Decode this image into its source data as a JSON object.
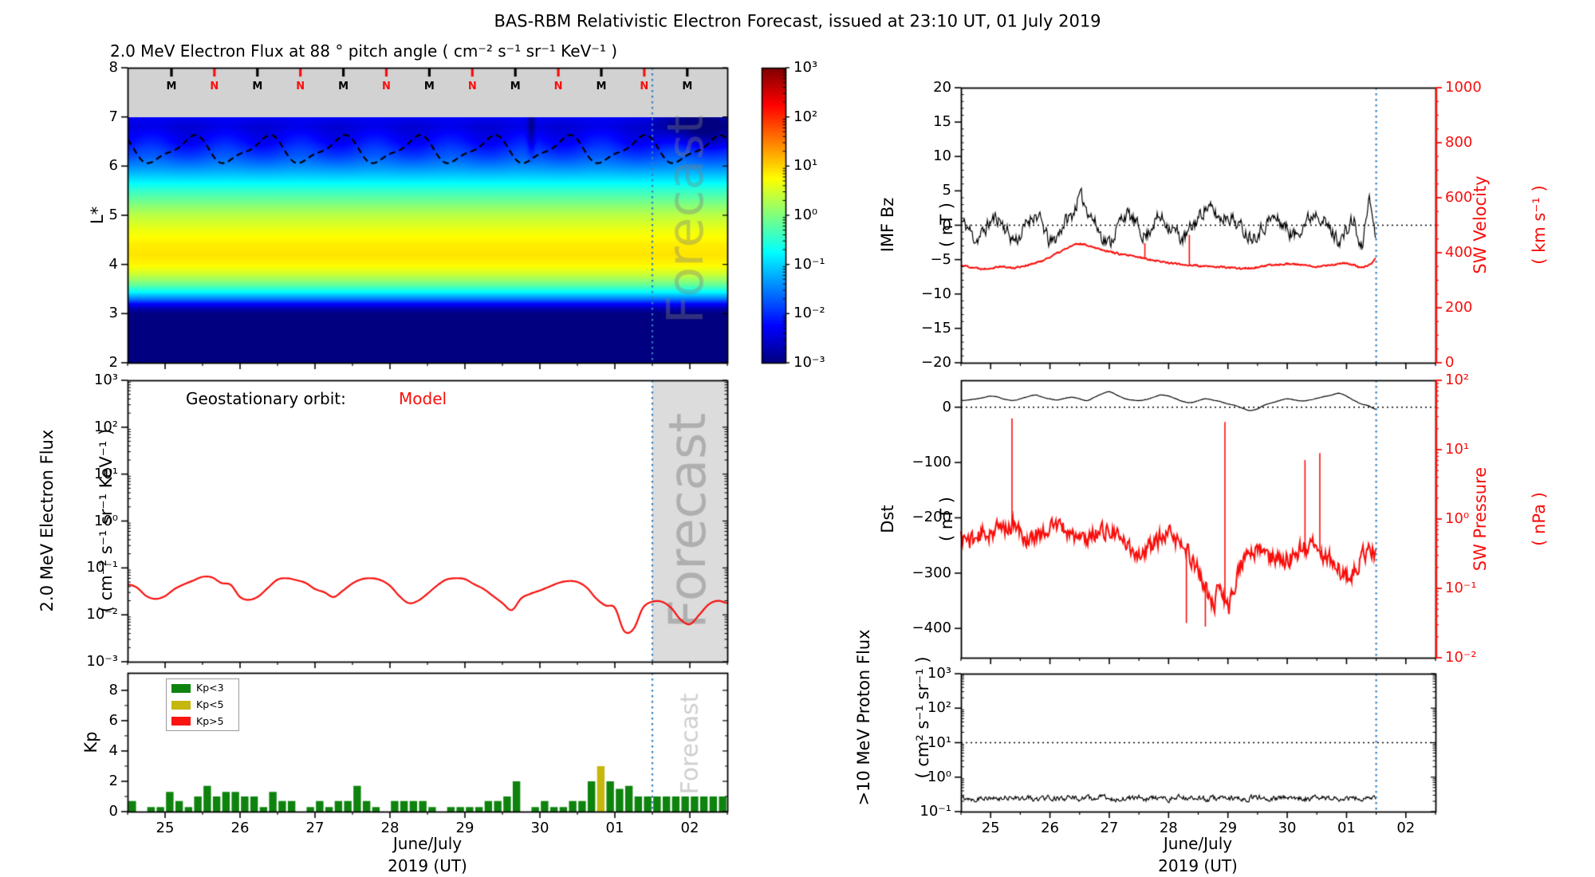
{
  "figure": {
    "title": "BAS-RBM Relativistic Electron Forecast, issued at 23:10 UT, 01 July 2019",
    "watermark": "Forecast"
  },
  "colors": {
    "red": "#f80f0c",
    "black": "#000000",
    "forecast_line": "#3580bf",
    "gray_band": "#d2d2d2",
    "forecast_shade": "#dcdcdc",
    "kp_green": "#0e830e",
    "kp_yellow": "#c5b70d",
    "kp_red": "#fa1510"
  },
  "time_axis": {
    "range": [
      24.5,
      32.5
    ],
    "forecast_start_t": 31.5,
    "ticks": [
      {
        "t": 25,
        "label": "25"
      },
      {
        "t": 26,
        "label": "26"
      },
      {
        "t": 27,
        "label": "27"
      },
      {
        "t": 28,
        "label": "28"
      },
      {
        "t": 29,
        "label": "29"
      },
      {
        "t": 30,
        "label": "30"
      },
      {
        "t": 31,
        "label": "01"
      },
      {
        "t": 32,
        "label": "02"
      }
    ],
    "xlabel_line1": "June/July",
    "xlabel_line2": "2019 (UT)"
  },
  "chart_data": [
    {
      "id": "electron-flux-heatmap",
      "type": "heatmap",
      "title": "2.0 MeV Electron Flux at 88 ° pitch angle ( cm⁻² s⁻¹ sr⁻¹ KeV⁻¹ )",
      "ylabel": "L*",
      "ylim": [
        2,
        8
      ],
      "yticks": [
        {
          "v": 8,
          "label": "8"
        },
        {
          "v": 7,
          "label": "7"
        },
        {
          "v": 6,
          "label": "6"
        },
        {
          "v": 5,
          "label": "5"
        },
        {
          "v": 4,
          "label": "4"
        },
        {
          "v": 3,
          "label": "3"
        },
        {
          "v": 2,
          "label": "2"
        }
      ],
      "colormap": "jet",
      "log10_color_range": [
        -3,
        3
      ],
      "colorbar_ticks": [
        {
          "v": 3,
          "label": "10³"
        },
        {
          "v": 2,
          "label": "10²"
        },
        {
          "v": 1,
          "label": "10¹"
        },
        {
          "v": 0,
          "label": "10⁰"
        },
        {
          "v": -1,
          "label": "10⁻¹"
        },
        {
          "v": -2,
          "label": "10⁻²"
        },
        {
          "v": -3,
          "label": "10⁻³"
        }
      ],
      "top_band": {
        "L_range": [
          7,
          8
        ],
        "first_t": 25.085,
        "step_t": 0.5734,
        "markers": [
          "M",
          "N",
          "M",
          "N",
          "M",
          "N",
          "M",
          "N",
          "M",
          "N",
          "M",
          "N",
          "M"
        ],
        "marker_colors": {
          "M": "black",
          "N": "red"
        }
      },
      "flux_profile": {
        "L": [
          7.0,
          6.8,
          6.5,
          6.2,
          6.0,
          5.8,
          5.5,
          5.2,
          5.0,
          4.7,
          4.4,
          4.2,
          4.0,
          3.8,
          3.6,
          3.45,
          3.3,
          3.2,
          3.1,
          3.0,
          2.0
        ],
        "log10_flux": [
          -2.3,
          -2.45,
          -2.2,
          -1.8,
          -1.45,
          -1.05,
          -0.45,
          0.05,
          0.35,
          0.65,
          0.85,
          0.9,
          0.8,
          0.45,
          -0.1,
          -0.7,
          -1.5,
          -2.2,
          -2.7,
          -3.0,
          -3.0
        ]
      },
      "ripple": {
        "amplitude_log10": 0.15,
        "period_days": 1.0,
        "center_L": 6.45,
        "sigma_L": 0.4,
        "phase_t": 24.55
      },
      "dark_features": [
        {
          "type": "vertical-seam",
          "t": 29.88,
          "sigma_t": 0.05,
          "depth_log10": 0.55,
          "above_L": 6.0
        },
        {
          "type": "forecast-blob",
          "t": 32.1,
          "sigma_t": 0.45,
          "depth_log10": 0.65,
          "above_L": 6.3
        }
      ],
      "dashed_line": {
        "base_L": 6.33,
        "amp1": 0.25,
        "amp2": 0.08,
        "period_days": 1.0,
        "phase_t": 25.1
      }
    },
    {
      "id": "geo-electron-flux",
      "type": "line",
      "annotation_label": "Geostationary orbit:",
      "annotation_value": "Model",
      "ylabel_line1": "2.0 MeV Electron Flux",
      "ylabel_line2": "( cm⁻² s⁻¹ sr⁻¹ KeV⁻¹ )",
      "ylim_log10": [
        -3,
        3
      ],
      "yticks": [
        {
          "v": 3,
          "label": "10³"
        },
        {
          "v": 2,
          "label": "10²"
        },
        {
          "v": 1,
          "label": "10¹"
        },
        {
          "v": 0,
          "label": "10⁰"
        },
        {
          "v": -1,
          "label": "10⁻¹"
        },
        {
          "v": -2,
          "label": "10⁻²"
        },
        {
          "v": -3,
          "label": "10⁻³"
        }
      ],
      "series": {
        "name": "Model",
        "color": "red",
        "x_start": 24.5,
        "dt": 0.125,
        "log10_values": [
          -1.35,
          -1.42,
          -1.6,
          -1.66,
          -1.6,
          -1.45,
          -1.35,
          -1.27,
          -1.19,
          -1.2,
          -1.32,
          -1.36,
          -1.62,
          -1.68,
          -1.6,
          -1.42,
          -1.25,
          -1.22,
          -1.26,
          -1.32,
          -1.45,
          -1.52,
          -1.62,
          -1.48,
          -1.33,
          -1.24,
          -1.22,
          -1.26,
          -1.38,
          -1.6,
          -1.75,
          -1.7,
          -1.55,
          -1.38,
          -1.25,
          -1.22,
          -1.24,
          -1.35,
          -1.45,
          -1.6,
          -1.75,
          -1.9,
          -1.65,
          -1.55,
          -1.48,
          -1.4,
          -1.32,
          -1.28,
          -1.3,
          -1.42,
          -1.65,
          -1.8,
          -1.85,
          -2.35,
          -2.3,
          -1.85,
          -1.72,
          -1.72,
          -1.85,
          -2.1,
          -2.2,
          -2.0,
          -1.78,
          -1.7,
          -1.75
        ]
      }
    },
    {
      "id": "kp-index",
      "type": "bar",
      "ylabel": "Kp",
      "ylim": [
        0,
        9.15
      ],
      "yticks": [
        {
          "v": 0,
          "label": "0"
        },
        {
          "v": 2,
          "label": "2"
        },
        {
          "v": 4,
          "label": "4"
        },
        {
          "v": 6,
          "label": "6"
        },
        {
          "v": 8,
          "label": "8"
        }
      ],
      "legend": [
        {
          "label": "Kp<3",
          "color_key": "kp_green"
        },
        {
          "label": "Kp<5",
          "color_key": "kp_yellow"
        },
        {
          "label": "Kp>5",
          "color_key": "kp_red"
        }
      ],
      "bars": {
        "x_start": 24.5625,
        "dt": 0.125,
        "yellow_threshold": 3,
        "red_threshold": 5,
        "values": [
          0.7,
          0,
          0.3,
          0.3,
          1.3,
          0.7,
          0.3,
          1.0,
          1.7,
          1.0,
          1.3,
          1.3,
          1.0,
          1.0,
          0.3,
          1.3,
          0.7,
          0.7,
          0,
          0.3,
          0.7,
          0.3,
          0.7,
          0.7,
          1.7,
          0.7,
          0.3,
          0,
          0.7,
          0.7,
          0.7,
          0.7,
          0.3,
          0,
          0.3,
          0.3,
          0.3,
          0.3,
          0.7,
          0.7,
          1.0,
          2.0,
          0,
          0.3,
          0.7,
          0.3,
          0.3,
          0.7,
          0.7,
          2.0,
          3.0,
          2.0,
          1.5,
          1.7,
          1.0,
          1.0,
          1.0,
          1.0,
          1.0,
          1.0,
          1.0,
          1.0,
          1.0,
          1.0
        ]
      }
    },
    {
      "id": "imf-bz-sw-velocity",
      "type": "line",
      "left_axis": {
        "label_line1": "IMF Bz",
        "label_line2": "( nT )",
        "ylim": [
          -20,
          20
        ],
        "yticks": [
          {
            "v": 20,
            "label": "20"
          },
          {
            "v": 15,
            "label": "15"
          },
          {
            "v": 10,
            "label": "10"
          },
          {
            "v": 5,
            "label": "5"
          },
          {
            "v": 0,
            "label": "0"
          },
          {
            "v": -5,
            "label": "−5"
          },
          {
            "v": -10,
            "label": "−10"
          },
          {
            "v": -15,
            "label": "−15"
          },
          {
            "v": -20,
            "label": "−20"
          }
        ]
      },
      "right_axis": {
        "label_line1": "SW Velocity",
        "label_line2": "( km s⁻¹ )",
        "color": "red",
        "ylim": [
          0,
          1000
        ],
        "yticks": [
          {
            "v": 1000,
            "label": "1000"
          },
          {
            "v": 800,
            "label": "800"
          },
          {
            "v": 600,
            "label": "600"
          },
          {
            "v": 400,
            "label": "400"
          },
          {
            "v": 200,
            "label": "200"
          },
          {
            "v": 0,
            "label": "0"
          }
        ]
      },
      "dotted_hline_bz": 0,
      "data_end_t": 31.5,
      "series": [
        {
          "name": "IMF Bz",
          "axis": "left",
          "color": "black",
          "x_start": 24.5,
          "dt": 0.125,
          "noise_amp": 1.7,
          "seed": 11,
          "values": [
            0.5,
            -0.5,
            -2,
            -1,
            0.5,
            1,
            -0.5,
            -2,
            -1.5,
            0.5,
            1.5,
            0,
            -2.5,
            -1.5,
            0.5,
            1.5,
            4,
            2.5,
            0.5,
            -1.5,
            -2.5,
            -0.5,
            1.5,
            1,
            -0.5,
            -1.5,
            0.5,
            1,
            0,
            -1,
            -2,
            -0.5,
            1,
            2.5,
            2,
            1,
            1.5,
            0.5,
            -0.5,
            -1.5,
            -1,
            0,
            1,
            0.5,
            -0.5,
            -1.5,
            0,
            1,
            2,
            0.5,
            -1,
            -2,
            -1,
            0.5,
            -3.5,
            3.5,
            -1.5
          ]
        },
        {
          "name": "SW Velocity",
          "axis": "right",
          "color": "red",
          "x_start": 24.5,
          "dt": 0.125,
          "noise_amp": 5,
          "seed": 22,
          "spikes": [
            {
              "t": 27.6,
              "v": 435
            },
            {
              "t": 28.35,
              "v": 465
            }
          ],
          "values": [
            355,
            350,
            345,
            342,
            345,
            350,
            348,
            345,
            350,
            355,
            362,
            372,
            385,
            398,
            412,
            425,
            432,
            428,
            420,
            412,
            405,
            398,
            392,
            388,
            383,
            378,
            373,
            368,
            364,
            360,
            357,
            355,
            352,
            350,
            349,
            348,
            346,
            344,
            343,
            344,
            347,
            351,
            355,
            358,
            360,
            358,
            355,
            352,
            351,
            353,
            356,
            359,
            361,
            355,
            345,
            355,
            378
          ]
        }
      ]
    },
    {
      "id": "dst-sw-pressure",
      "type": "line",
      "left_axis": {
        "label_line1": "Dst",
        "label_line2": "( nT )",
        "ylim": [
          -453,
          48.6
        ],
        "yticks": [
          {
            "v": 0,
            "label": "0"
          },
          {
            "v": -100,
            "label": "−100"
          },
          {
            "v": -200,
            "label": "−200"
          },
          {
            "v": -300,
            "label": "−300"
          },
          {
            "v": -400,
            "label": "−400"
          }
        ]
      },
      "right_axis": {
        "label_line1": "SW Pressure",
        "label_line2": "( nPa )",
        "color": "red",
        "ylim_log10": [
          -2,
          2
        ],
        "yticks": [
          {
            "v": 2,
            "label": "10²"
          },
          {
            "v": 1,
            "label": "10¹"
          },
          {
            "v": 0,
            "label": "10⁰"
          },
          {
            "v": -1,
            "label": "10⁻¹"
          },
          {
            "v": -2,
            "label": "10⁻²"
          }
        ]
      },
      "dotted_hline_dst": 0,
      "data_end_t": 31.5,
      "series": [
        {
          "name": "Dst",
          "axis": "left",
          "color": "black",
          "x_start": 24.5,
          "dt": 0.125,
          "noise_amp": 0.5,
          "seed": 33,
          "values": [
            12,
            13,
            15,
            17,
            20,
            18,
            14,
            12,
            15,
            19,
            22,
            18,
            15,
            13,
            16,
            18,
            15,
            12,
            18,
            24,
            28,
            22,
            16,
            13,
            12,
            14,
            18,
            22,
            20,
            15,
            10,
            8,
            12,
            15,
            13,
            10,
            6,
            3,
            -2,
            -6,
            -3,
            4,
            8,
            12,
            15,
            13,
            11,
            13,
            16,
            19,
            22,
            25,
            20,
            12,
            6,
            2,
            -4
          ]
        },
        {
          "name": "SW Pressure",
          "axis": "right",
          "color": "red",
          "x_start": 24.5,
          "dt": 0.125,
          "noise_amp": 0.2,
          "seed": 44,
          "spikes": [
            {
              "t": 25.36,
              "v": 1.45
            },
            {
              "t": 28.95,
              "v": 1.4
            },
            {
              "t": 30.3,
              "v": 0.85
            },
            {
              "t": 30.55,
              "v": 0.95
            },
            {
              "t": 28.3,
              "v": -1.5
            },
            {
              "t": 28.62,
              "v": -1.55
            }
          ],
          "values": [
            -0.25,
            -0.3,
            -0.28,
            -0.22,
            -0.18,
            -0.15,
            -0.12,
            -0.1,
            -0.2,
            -0.3,
            -0.25,
            -0.18,
            -0.12,
            -0.1,
            -0.15,
            -0.22,
            -0.3,
            -0.28,
            -0.2,
            -0.15,
            -0.18,
            -0.25,
            -0.35,
            -0.42,
            -0.5,
            -0.45,
            -0.35,
            -0.28,
            -0.25,
            -0.3,
            -0.42,
            -0.55,
            -0.75,
            -1.0,
            -1.25,
            -1.0,
            -1.3,
            -0.9,
            -0.6,
            -0.5,
            -0.45,
            -0.5,
            -0.55,
            -0.6,
            -0.55,
            -0.5,
            -0.45,
            -0.42,
            -0.4,
            -0.5,
            -0.6,
            -0.7,
            -0.85,
            -0.75,
            -0.55,
            -0.45,
            -0.5
          ]
        }
      ]
    },
    {
      "id": "proton-flux",
      "type": "line",
      "left_axis": {
        "label_line1": ">10 MeV Proton Flux",
        "label_line2": "( cm² s⁻¹ sr⁻¹ )",
        "ylim_log10": [
          -1,
          3
        ],
        "yticks": [
          {
            "v": 3,
            "label": "10³"
          },
          {
            "v": 2,
            "label": "10²"
          },
          {
            "v": 1,
            "label": "10¹"
          },
          {
            "v": 0,
            "label": "10⁰"
          },
          {
            "v": -1,
            "label": "10⁻¹"
          }
        ]
      },
      "dotted_hline_log10": 1,
      "data_end_t": 31.5,
      "series": [
        {
          "name": ">10 MeV Proton Flux",
          "axis": "left",
          "color": "black",
          "x_start": 24.5,
          "dt": 0.125,
          "noise_amp": 0.12,
          "seed": 55,
          "values": [
            -0.62,
            -0.6,
            -0.64,
            -0.58,
            -0.62,
            -0.65,
            -0.6,
            -0.57,
            -0.63,
            -0.6,
            -0.66,
            -0.6,
            -0.58,
            -0.62,
            -0.64,
            -0.59,
            -0.62,
            -0.6,
            -0.63,
            -0.58,
            -0.61,
            -0.64,
            -0.6,
            -0.62,
            -0.59,
            -0.63,
            -0.6,
            -0.62,
            -0.65,
            -0.6,
            -0.58,
            -0.62,
            -0.6,
            -0.64,
            -0.61,
            -0.59,
            -0.62,
            -0.6,
            -0.63,
            -0.61,
            -0.58,
            -0.62,
            -0.64,
            -0.6,
            -0.62,
            -0.59,
            -0.61,
            -0.63,
            -0.6,
            -0.62,
            -0.6,
            -0.64,
            -0.58,
            -0.61,
            -0.63,
            -0.6,
            -0.62
          ]
        }
      ]
    }
  ]
}
